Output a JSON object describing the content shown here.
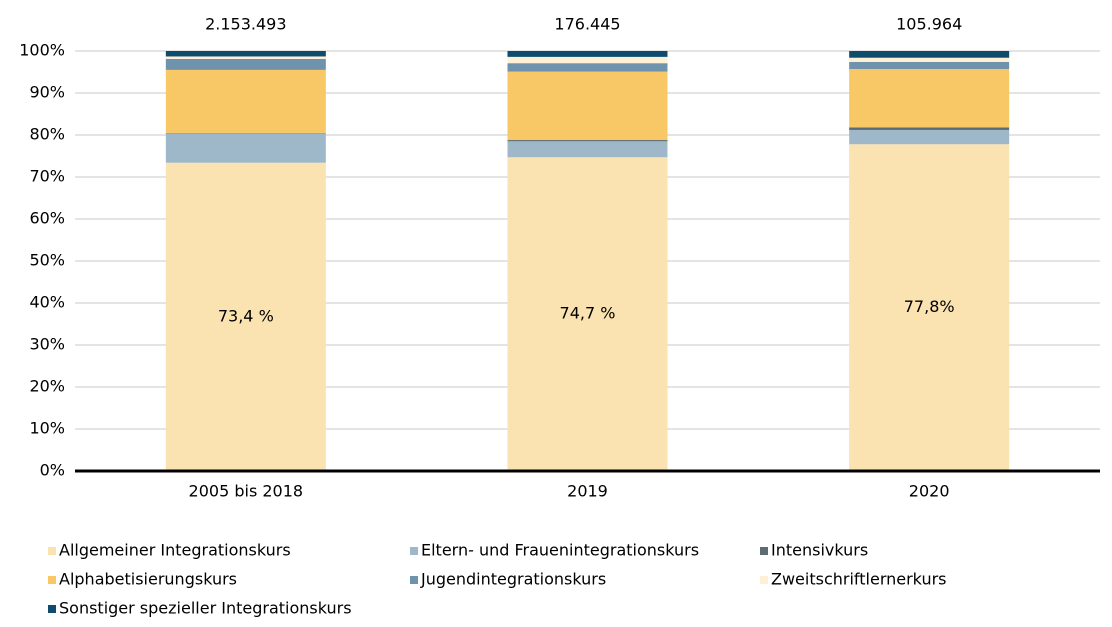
{
  "chart_data": {
    "type": "stacked_bar",
    "categories": [
      "2005 bis 2018",
      "2019",
      "2020"
    ],
    "series": [
      {
        "name": "Allgemeiner Integrationskurs",
        "color": "#fae3b0",
        "values": [
          73.4,
          74.7,
          77.8
        ],
        "value_labels": [
          "73,4 %",
          "74,7 %",
          "77,8%"
        ]
      },
      {
        "name": "Eltern- und Frauenintegrationskurs",
        "color": "#9fb8c9",
        "values": [
          7.0,
          3.8,
          3.4
        ]
      },
      {
        "name": "Intensivkurs",
        "color": "#5d6b73",
        "values": [
          0.1,
          0.3,
          0.6
        ]
      },
      {
        "name": "Alphabetisierungskurs",
        "color": "#f8c766",
        "values": [
          15.0,
          16.3,
          13.9
        ]
      },
      {
        "name": "Jugendintegrationskurs",
        "color": "#6f93ad",
        "values": [
          2.6,
          2.0,
          1.7
        ]
      },
      {
        "name": "Zweitschriftlernerkurs",
        "color": "#fdf0d5",
        "values": [
          0.6,
          1.5,
          1.0
        ]
      },
      {
        "name": "Sonstiger spezieller Integrationskurs",
        "color": "#0e4c6e",
        "values": [
          1.3,
          1.4,
          1.6
        ]
      }
    ],
    "totals": {
      "values": [
        2153493,
        176445,
        105964
      ],
      "value_labels": [
        "2.153.493",
        "176.445",
        "105.964"
      ]
    },
    "ylim": [
      0,
      100
    ],
    "yticks": [
      {
        "value": 0,
        "label": "0%"
      },
      {
        "value": 10,
        "label": "10%"
      },
      {
        "value": 20,
        "label": "20%"
      },
      {
        "value": 30,
        "label": "30%"
      },
      {
        "value": 40,
        "label": "40%"
      },
      {
        "value": 50,
        "label": "50%"
      },
      {
        "value": 60,
        "label": "60%"
      },
      {
        "value": 70,
        "label": "70%"
      },
      {
        "value": 80,
        "label": "80%"
      },
      {
        "value": 90,
        "label": "90%"
      },
      {
        "value": 100,
        "label": "100%"
      }
    ],
    "grid": true
  }
}
